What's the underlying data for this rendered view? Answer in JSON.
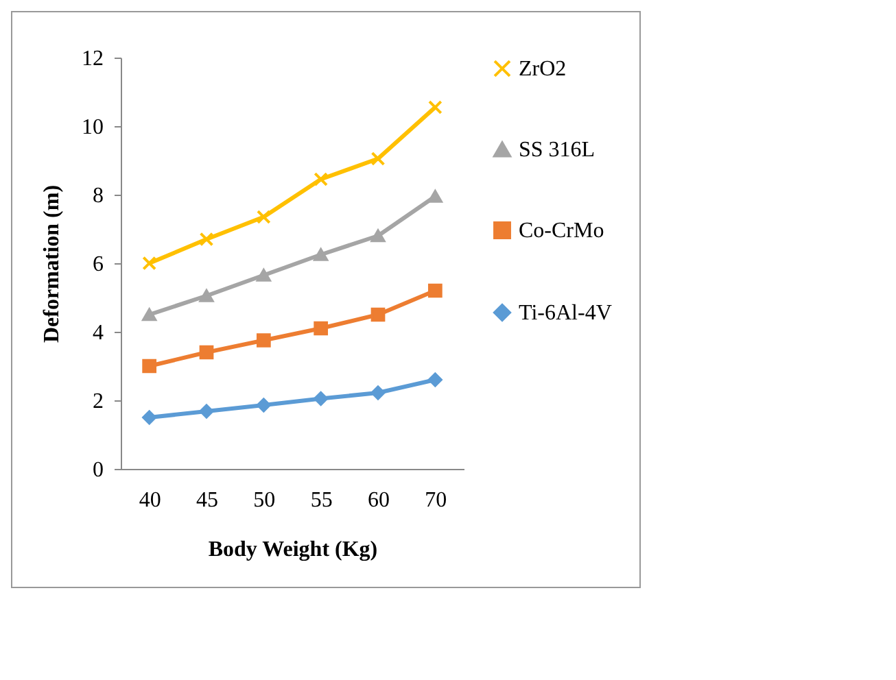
{
  "chart_data": {
    "type": "line",
    "xlabel": "Body Weight (Kg)",
    "ylabel": "Deformation (m)",
    "categories": [
      "40",
      "45",
      "50",
      "55",
      "60",
      "70"
    ],
    "ylim": [
      0,
      12
    ],
    "yticks": [
      0,
      2,
      4,
      6,
      8,
      10,
      12
    ],
    "grid": false,
    "legend": "right",
    "series": [
      {
        "name": "ZrO2",
        "color": "#ffc000",
        "marker": "cross",
        "values": [
          6.0,
          6.7,
          7.35,
          8.45,
          9.05,
          10.55
        ]
      },
      {
        "name": "SS 316L",
        "color": "#a5a5a5",
        "marker": "triangle",
        "values": [
          4.5,
          5.05,
          5.65,
          6.25,
          6.8,
          7.95
        ]
      },
      {
        "name": "Co-CrMo",
        "color": "#ed7d31",
        "marker": "square",
        "values": [
          3.0,
          3.4,
          3.75,
          4.1,
          4.5,
          5.2
        ]
      },
      {
        "name": "Ti-6Al-4V",
        "color": "#5b9bd5",
        "marker": "diamond",
        "values": [
          1.5,
          1.68,
          1.86,
          2.05,
          2.22,
          2.6
        ]
      }
    ]
  }
}
